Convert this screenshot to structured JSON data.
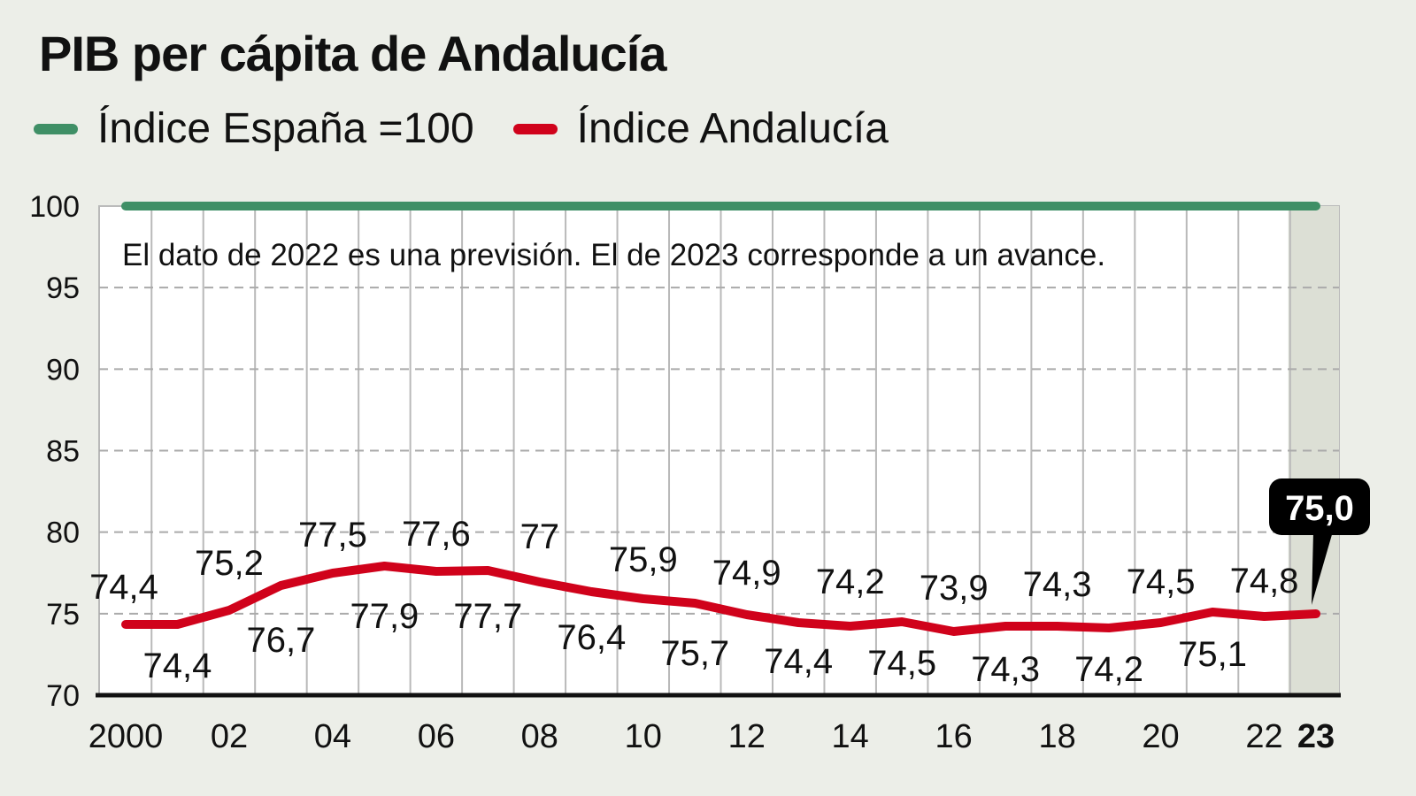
{
  "header": {
    "title": "PIB per cápita de Andalucía"
  },
  "legend": [
    {
      "label": "Índice España =100",
      "color": "#3f8f66"
    },
    {
      "label": "Índice Andalucía",
      "color": "#d0021b"
    }
  ],
  "note": "El dato de 2022 es una previsión. El de 2023 corresponde a un avance.",
  "callout": {
    "label": "75,0",
    "year": 2023
  },
  "colors": {
    "background": "#eceee8",
    "plot_background": "#ffffff",
    "highlight_column": "#dcdfd5",
    "spain_line": "#3f8f66",
    "andalucia_line": "#d0021b",
    "callout_bg": "#000000"
  },
  "chart_data": {
    "type": "line",
    "title": "PIB per cápita de Andalucía",
    "xlabel": "",
    "ylabel": "",
    "ylim": [
      70,
      100
    ],
    "yticks": [
      100,
      95,
      90,
      85,
      80,
      75,
      70
    ],
    "x": [
      2000,
      2001,
      2002,
      2003,
      2004,
      2005,
      2006,
      2007,
      2008,
      2009,
      2010,
      2011,
      2012,
      2013,
      2014,
      2015,
      2016,
      2017,
      2018,
      2019,
      2020,
      2021,
      2022,
      2023
    ],
    "xtick_labels": [
      "2000",
      "02",
      "04",
      "06",
      "08",
      "10",
      "12",
      "14",
      "16",
      "18",
      "20",
      "22",
      "23"
    ],
    "grid": "horizontal dashed + vertical per year",
    "legend_position": "top",
    "series": [
      {
        "name": "Índice España =100",
        "values": [
          100,
          100,
          100,
          100,
          100,
          100,
          100,
          100,
          100,
          100,
          100,
          100,
          100,
          100,
          100,
          100,
          100,
          100,
          100,
          100,
          100,
          100,
          100,
          100
        ]
      },
      {
        "name": "Índice Andalucía",
        "values": [
          74.4,
          74.4,
          75.2,
          76.7,
          77.5,
          77.9,
          77.6,
          77.7,
          77.0,
          76.4,
          75.9,
          75.7,
          74.9,
          74.4,
          74.2,
          74.5,
          73.9,
          74.3,
          74.3,
          74.2,
          74.5,
          75.1,
          74.8,
          75.0
        ]
      }
    ],
    "data_labels": [
      "74,4",
      "74,4",
      "75,2",
      "76,7",
      "77,5",
      "77,9",
      "77,6",
      "77,7",
      "77",
      "76,4",
      "75,9",
      "75,7",
      "74,9",
      "74,4",
      "74,2",
      "74,5",
      "73,9",
      "74,3",
      "74,3",
      "74,2",
      "74,5",
      "75,1",
      "74,8",
      "75,0"
    ],
    "annotations": [
      "El dato de 2022 es una previsión. El de 2023 corresponde a un avance.",
      "2023 highlighted: 75,0"
    ]
  }
}
